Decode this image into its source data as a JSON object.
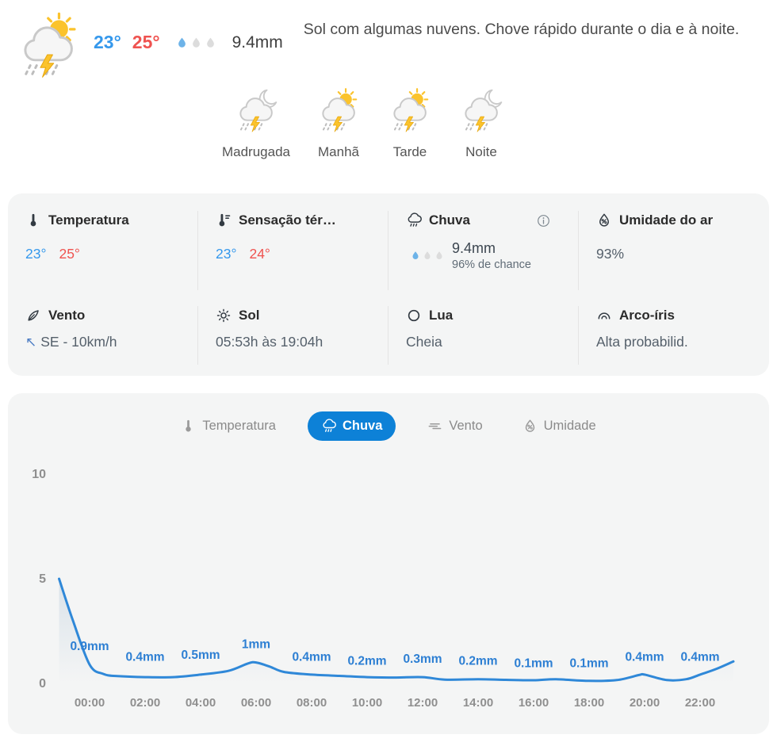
{
  "colors": {
    "accent_blue": "#0d81d7",
    "temp_blue": "#3598ec",
    "temp_red": "#ef5350",
    "line_blue": "#2f88d8",
    "point_label_blue": "#2d7fd3",
    "panel_bg": "#f4f5f5",
    "axis_gray": "#8f8f8f",
    "drop_blue": "#6db3e8",
    "drop_gray": "#dcdcdc"
  },
  "header": {
    "icon": "storm-sun-icon",
    "temp_min": "23°",
    "temp_max": "25°",
    "precip_total": "9.4mm",
    "drops_active": 1,
    "drops_total": 3,
    "description": "Sol com algumas nuvens. Chove rápido durante o dia e à noite."
  },
  "periods": [
    {
      "name": "madrugada",
      "label": "Madrugada",
      "icon": "storm-moon-icon"
    },
    {
      "name": "manha",
      "label": "Manhã",
      "icon": "storm-sun-icon"
    },
    {
      "name": "tarde",
      "label": "Tarde",
      "icon": "storm-sun-icon"
    },
    {
      "name": "noite",
      "label": "Noite",
      "icon": "storm-moon-icon"
    }
  ],
  "details": {
    "rows": [
      [
        {
          "name": "temperatura",
          "title": "Temperatura",
          "icon": "thermometer-icon",
          "kind": "temps",
          "min": "23°",
          "max": "25°"
        },
        {
          "name": "sensacao-termica",
          "title": "Sensação tér…",
          "icon": "thermometer-feel-icon",
          "kind": "temps",
          "min": "23°",
          "max": "24°"
        },
        {
          "name": "chuva",
          "title": "Chuva",
          "icon": "rain-cloud-icon",
          "info_icon": true,
          "kind": "precip",
          "value": "9.4mm",
          "sub": "96% de chance",
          "drops_active": 1,
          "drops_total": 3
        },
        {
          "name": "umidade-do-ar",
          "title": "Umidade do ar",
          "icon": "humidity-icon",
          "kind": "text",
          "value": "93%"
        }
      ],
      [
        {
          "name": "vento",
          "title": "Vento",
          "icon": "feather-icon",
          "kind": "text",
          "arrow": "↖",
          "value": "SE - 10km/h"
        },
        {
          "name": "sol",
          "title": "Sol",
          "icon": "sun-icon",
          "kind": "text",
          "value": "05:53h às 19:04h"
        },
        {
          "name": "lua",
          "title": "Lua",
          "icon": "moon-icon",
          "kind": "text",
          "value": "Cheia"
        },
        {
          "name": "arco-iris",
          "title": "Arco-íris",
          "icon": "rainbow-icon",
          "kind": "text",
          "value": "Alta probabilid."
        }
      ]
    ]
  },
  "tabs": [
    {
      "name": "temperatura",
      "label": "Temperatura",
      "icon": "thermometer-icon",
      "active": false
    },
    {
      "name": "chuva",
      "label": "Chuva",
      "icon": "rain-cloud-icon",
      "active": true
    },
    {
      "name": "vento",
      "label": "Vento",
      "icon": "wind-lines-icon",
      "active": false
    },
    {
      "name": "umidade",
      "label": "Umidade",
      "icon": "humidity-icon",
      "active": false
    }
  ],
  "chart_data": {
    "type": "area",
    "series_name": "Chuva",
    "unit": "mm",
    "x_ticks": [
      "00:00",
      "02:00",
      "04:00",
      "06:00",
      "08:00",
      "10:00",
      "12:00",
      "14:00",
      "16:00",
      "18:00",
      "20:00",
      "22:00"
    ],
    "values_mm": [
      0.9,
      0.4,
      0.5,
      1,
      0.4,
      0.2,
      0.3,
      0.2,
      0.1,
      0.1,
      0.4,
      0.4
    ],
    "point_labels": [
      "0.9mm",
      "0.4mm",
      "0.5mm",
      "1mm",
      "0.4mm",
      "0.2mm",
      "0.3mm",
      "0.2mm",
      "0.1mm",
      "0.1mm",
      "0.4mm",
      "0.4mm"
    ],
    "y_ticks": [
      0,
      5,
      10
    ],
    "ylim": [
      0,
      10
    ],
    "grid": false,
    "legend": false,
    "line_profile_hour_mm": [
      [
        -1.1,
        5
      ],
      [
        -0.6,
        3
      ],
      [
        0,
        0.9
      ],
      [
        0.5,
        0.45
      ],
      [
        1,
        0.35
      ],
      [
        2,
        0.3
      ],
      [
        3,
        0.3
      ],
      [
        4,
        0.42
      ],
      [
        5,
        0.6
      ],
      [
        5.7,
        0.95
      ],
      [
        6,
        1
      ],
      [
        6.5,
        0.8
      ],
      [
        7,
        0.55
      ],
      [
        8,
        0.42
      ],
      [
        9,
        0.36
      ],
      [
        10,
        0.3
      ],
      [
        11,
        0.28
      ],
      [
        12,
        0.3
      ],
      [
        12.8,
        0.18
      ],
      [
        14,
        0.2
      ],
      [
        15,
        0.17
      ],
      [
        16,
        0.15
      ],
      [
        16.8,
        0.2
      ],
      [
        18,
        0.12
      ],
      [
        19,
        0.16
      ],
      [
        19.8,
        0.4
      ],
      [
        20,
        0.42
      ],
      [
        20.8,
        0.16
      ],
      [
        21.5,
        0.2
      ],
      [
        22,
        0.42
      ],
      [
        22.6,
        0.7
      ],
      [
        23.2,
        1.05
      ]
    ]
  }
}
